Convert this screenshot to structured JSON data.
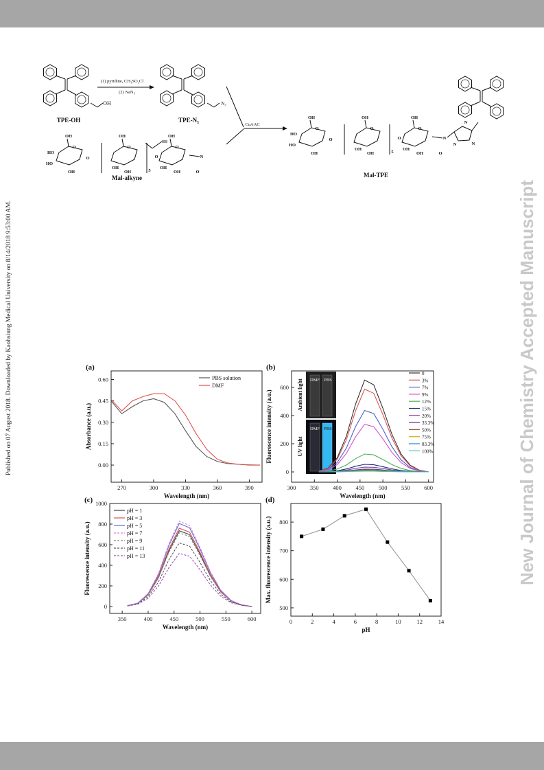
{
  "sidebar_left": "Published on 07 August 2018. Downloaded by Kaohsiung Medical University on 8/14/2018 9:53:00 AM.",
  "sidebar_right": "New Journal of Chemistry Accepted Manuscript",
  "scheme": {
    "reagents": [
      "(1) pyridine, CH₃SO₂Cl",
      "(2) NaN₃"
    ],
    "catalyst": "CuAAC",
    "compounds": [
      "TPE-OH",
      "TPE-N₃",
      "Mal-alkyne",
      "Mal-TPE"
    ],
    "tpe_oh_atoms": [
      "OH"
    ],
    "tpe_n3_atoms": [
      "N₃"
    ],
    "mal_alkyne_atoms": [
      "OH",
      "O",
      "HO",
      "HO",
      "OH",
      "O",
      "OH",
      "O",
      "OH",
      "OH",
      "5",
      "O",
      "OH",
      "O",
      "OH",
      "OH",
      "N",
      "O"
    ],
    "mal_tpe_atoms": [
      "OH",
      "O",
      "HO",
      "HO",
      "OH",
      "O",
      "OH",
      "O",
      "OH",
      "OH",
      "5",
      "O",
      "OH",
      "O",
      "OH",
      "OH",
      "N",
      "O",
      "N",
      "N",
      "N"
    ]
  },
  "chart_data": [
    {
      "type": "line",
      "panel_label": "(a)",
      "x_label": "Wavelength (nm)",
      "y_label": "Absorbance (a.u.)",
      "x": [
        260,
        270,
        280,
        290,
        300,
        310,
        320,
        330,
        340,
        350,
        360,
        370,
        380,
        390,
        400
      ],
      "series": [
        {
          "name": "PBS solution",
          "color": "#555555",
          "values": [
            0.45,
            0.36,
            0.41,
            0.45,
            0.465,
            0.44,
            0.36,
            0.24,
            0.13,
            0.06,
            0.025,
            0.01,
            0.005,
            0.0,
            0.0
          ]
        },
        {
          "name": "DMF",
          "color": "#e0524e",
          "values": [
            0.46,
            0.38,
            0.45,
            0.48,
            0.5,
            0.5,
            0.45,
            0.35,
            0.22,
            0.11,
            0.04,
            0.015,
            0.005,
            0.002,
            0.0
          ]
        }
      ],
      "xlim": [
        260,
        402
      ],
      "ylim": [
        -0.12,
        0.66
      ],
      "xticks": [
        270,
        300,
        330,
        360,
        390
      ],
      "yticks": [
        {
          "value": 0,
          "label": "0.00"
        },
        0.15,
        {
          "value": 0.3,
          "label": "0.30"
        },
        0.45,
        {
          "value": 0.6,
          "label": "0.60"
        }
      ],
      "legend": "upper right"
    },
    {
      "type": "line",
      "panel_label": "(b)",
      "x_label": "Wavelength (nm)",
      "y_label": "Fluorescence intensity (a.u.)",
      "x": [
        360,
        380,
        400,
        420,
        440,
        460,
        480,
        500,
        520,
        540,
        560,
        580,
        600
      ],
      "series": [
        {
          "name": "0",
          "color": "#333333",
          "values": [
            7,
            27,
            100,
            253,
            479,
            652,
            618,
            452,
            266,
            126,
            47,
            13,
            0
          ]
        },
        {
          "name": "3%",
          "color": "#d9534f",
          "values": [
            6,
            24,
            90,
            228,
            432,
            588,
            558,
            408,
            240,
            114,
            42,
            12,
            0
          ]
        },
        {
          "name": "7%",
          "color": "#4a62c8",
          "values": [
            4,
            18,
            67,
            169,
            320,
            436,
            414,
            303,
            178,
            85,
            31,
            9,
            0
          ]
        },
        {
          "name": "9%",
          "color": "#d14fd1",
          "values": [
            3,
            14,
            52,
            131,
            248,
            338,
            321,
            235,
            138,
            66,
            24,
            7,
            0
          ]
        },
        {
          "name": "12%",
          "color": "#4caf50",
          "values": [
            1,
            5,
            20,
            49,
            94,
            127,
            121,
            88,
            52,
            25,
            9,
            3,
            0
          ]
        },
        {
          "name": "15%",
          "color": "#1f2d7a",
          "values": [
            1,
            2,
            8,
            21,
            40,
            54,
            51,
            37,
            22,
            10,
            4,
            1,
            0
          ]
        },
        {
          "name": "20%",
          "color": "#7b3fa0",
          "values": [
            0,
            1,
            5,
            13,
            25,
            34,
            33,
            24,
            14,
            7,
            2,
            1,
            0
          ]
        },
        {
          "name": "33.3%",
          "color": "#5a3b8c",
          "values": [
            0,
            1,
            3,
            8,
            14,
            20,
            19,
            14,
            8,
            4,
            1,
            0,
            0
          ]
        },
        {
          "name": "50%",
          "color": "#9a5a2a",
          "values": [
            0,
            1,
            2,
            6,
            11,
            15,
            14,
            10,
            6,
            3,
            1,
            0,
            0
          ]
        },
        {
          "name": "75%",
          "color": "#c8b400",
          "values": [
            0,
            0,
            2,
            4,
            7,
            10,
            9,
            7,
            4,
            2,
            1,
            0,
            0
          ]
        },
        {
          "name": "83.3%",
          "color": "#2f7fc8",
          "values": [
            0,
            0,
            1,
            3,
            6,
            8,
            7,
            5,
            3,
            2,
            1,
            0,
            0
          ]
        },
        {
          "name": "100%",
          "color": "#3cc8b4",
          "values": [
            0,
            0,
            1,
            2,
            4,
            5,
            5,
            3,
            2,
            1,
            0,
            0,
            0
          ]
        }
      ],
      "xlim": [
        300,
        611
      ],
      "ylim": [
        -73,
        717
      ],
      "xticks": [
        300,
        350,
        400,
        450,
        500,
        550,
        600
      ],
      "yticks": [
        0,
        200,
        400,
        600
      ],
      "legend": "right",
      "inset_labels": [
        "Ambient light",
        "UV light",
        "DMF",
        "PBS",
        "DMF",
        "PBS"
      ]
    },
    {
      "type": "line",
      "panel_label": "(c)",
      "x_label": "Wavelength (nm)",
      "y_label": "Fluorescence intensity (a.u.)",
      "x": [
        360,
        380,
        400,
        420,
        440,
        460,
        480,
        500,
        520,
        540,
        560,
        580,
        600
      ],
      "series": [
        {
          "name": "pH = 1",
          "color": "#444444",
          "dashed": false,
          "values": [
            8,
            30,
            113,
            285,
            540,
            735,
            698,
            510,
            300,
            143,
            53,
            15,
            0
          ]
        },
        {
          "name": "pH = 3",
          "color": "#d9534f",
          "dashed": false,
          "values": [
            8,
            31,
            116,
            295,
            558,
            760,
            721,
            527,
            310,
            147,
            54,
            16,
            0
          ]
        },
        {
          "name": "pH = 5",
          "color": "#5b6fd6",
          "dashed": false,
          "values": [
            8,
            33,
            123,
            312,
            592,
            806,
            764,
            559,
            329,
            156,
            58,
            16,
            0
          ]
        },
        {
          "name": "pH = 7",
          "color": "#e27ad8",
          "dashed": true,
          "values": [
            8,
            34,
            127,
            321,
            608,
            828,
            786,
            575,
            338,
            161,
            59,
            17,
            0
          ]
        },
        {
          "name": "pH = 9",
          "color": "#888888",
          "dashed": true,
          "values": [
            7,
            29,
            110,
            277,
            526,
            715,
            679,
            496,
            292,
            139,
            51,
            15,
            0
          ]
        },
        {
          "name": "pH = 11",
          "color": "#555555",
          "dashed": true,
          "values": [
            6,
            25,
            95,
            239,
            454,
            617,
            586,
            428,
            252,
            120,
            44,
            13,
            0
          ]
        },
        {
          "name": "pH = 13",
          "color": "#a050b8",
          "dashed": true,
          "values": [
            5,
            21,
            79,
            200,
            378,
            515,
            488,
            357,
            210,
            100,
            37,
            11,
            0
          ]
        }
      ],
      "xlim": [
        326,
        617
      ],
      "ylim": [
        -67,
        1000
      ],
      "xticks": [
        350,
        400,
        450,
        500,
        550,
        600
      ],
      "yticks": [
        0,
        200,
        400,
        600,
        800,
        1000
      ],
      "legend": "upper left"
    },
    {
      "type": "line",
      "panel_label": "(d)",
      "x_label": "pH",
      "y_label": "Max. fluorescence intensity (a.u.)",
      "x": [
        1,
        3,
        5,
        7,
        9,
        11,
        13
      ],
      "series": [
        {
          "color": "#999999",
          "marker_color": "#000000",
          "values": [
            750,
            775,
            822,
            845,
            730,
            630,
            525
          ]
        }
      ],
      "markers": true,
      "xlim": [
        0,
        14
      ],
      "ylim": [
        471,
        865
      ],
      "xticks": [
        0,
        2,
        4,
        6,
        8,
        10,
        12,
        14
      ],
      "yticks": [
        500,
        600,
        700,
        800
      ]
    }
  ]
}
